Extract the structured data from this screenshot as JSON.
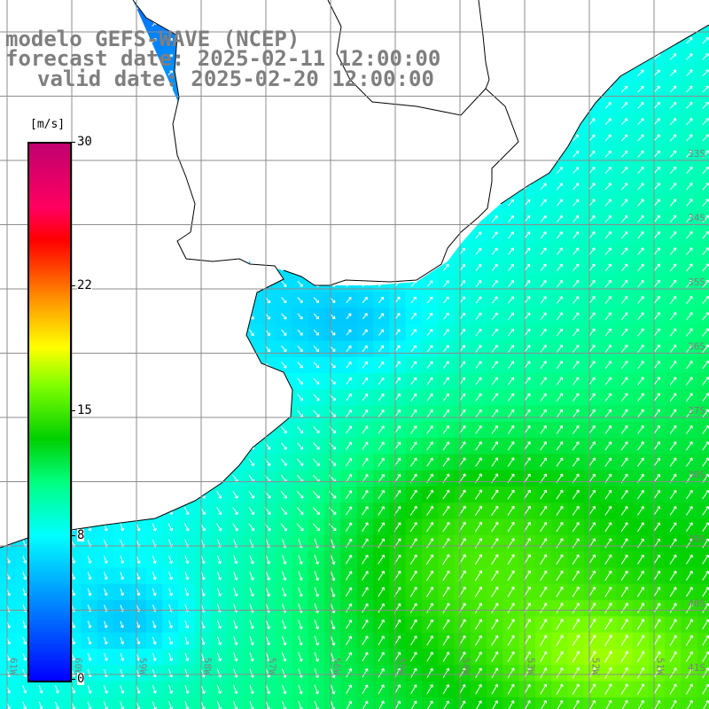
{
  "title": {
    "model": "modelo GEFS-WAVE (NCEP)",
    "forecast": "forecast date: 2025-02-11 12:00:00",
    "valid": "valid date: 2025-02-20 12:00:00"
  },
  "colorbar": {
    "unit": "[m/s]",
    "min": 0,
    "max": 30,
    "ticks": [
      "30",
      "22",
      "15",
      "8",
      "0"
    ],
    "colors": [
      "#0000ff",
      "#00a0ff",
      "#00ffff",
      "#00ff80",
      "#00d000",
      "#80ff00",
      "#ffff00",
      "#ffa000",
      "#ff4000",
      "#ff0000",
      "#ff0060",
      "#c0006f"
    ]
  },
  "lat_labels": [
    "33S",
    "34S",
    "35S",
    "36S",
    "37S",
    "38S",
    "39S",
    "40S",
    "41S"
  ],
  "lon_labels": [
    "61W",
    "60W",
    "59W",
    "58W",
    "57W",
    "56W",
    "55W",
    "54W",
    "53W",
    "52W",
    "51W"
  ],
  "colors": {
    "land": "#ffffff",
    "coast": "#000000",
    "grid": "#8c8c8c",
    "arrow": "#ffffff",
    "title": "#7f7f7f"
  }
}
